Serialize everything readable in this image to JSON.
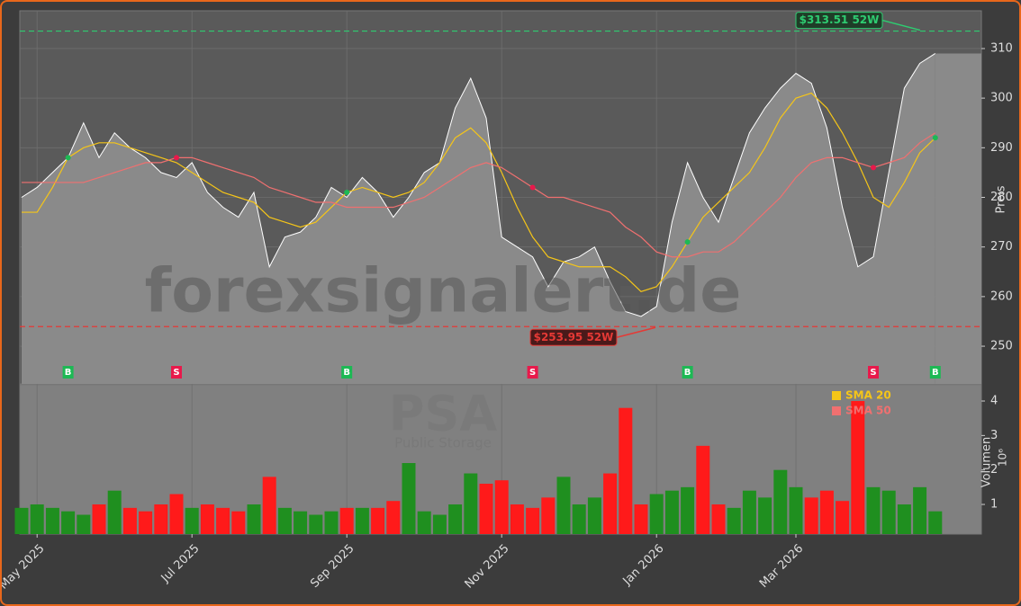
{
  "chart_data": {
    "type": "line",
    "categories": [
      null,
      "May 2025",
      null,
      null,
      null,
      null,
      null,
      null,
      null,
      null,
      null,
      "Jul 2025",
      null,
      null,
      null,
      null,
      null,
      null,
      null,
      null,
      null,
      "Sep 2025",
      null,
      null,
      null,
      null,
      null,
      null,
      null,
      null,
      null,
      "Nov 2025",
      null,
      null,
      null,
      null,
      null,
      null,
      null,
      null,
      null,
      "Jan 2026",
      null,
      null,
      null,
      null,
      null,
      null,
      null,
      null,
      "Mar 2026",
      null,
      null,
      null,
      null,
      null,
      null,
      null,
      null,
      null
    ],
    "series": [
      {
        "name": "PSA",
        "color": "#ffffff",
        "values": [
          280,
          282,
          285,
          288,
          295,
          288,
          293,
          290,
          288,
          285,
          284,
          287,
          281,
          278,
          276,
          281,
          266,
          272,
          273,
          276,
          282,
          280,
          284,
          281,
          276,
          280,
          285,
          287,
          298,
          304,
          296,
          272,
          270,
          268,
          262,
          267,
          268,
          270,
          263,
          257,
          256,
          258,
          275,
          287,
          280,
          275,
          284,
          293,
          298,
          302,
          305,
          303,
          294,
          278,
          266,
          268,
          285,
          302,
          307,
          309
        ]
      },
      {
        "name": "SMA 20",
        "color": "#f5c518",
        "values": [
          277,
          277,
          282,
          288,
          290,
          291,
          291,
          290,
          289,
          288,
          287,
          285,
          283,
          281,
          280,
          279,
          276,
          275,
          274,
          275,
          278,
          281,
          282,
          281,
          280,
          281,
          283,
          287,
          292,
          294,
          291,
          285,
          278,
          272,
          268,
          267,
          266,
          266,
          266,
          264,
          261,
          262,
          266,
          271,
          276,
          279,
          282,
          285,
          290,
          296,
          300,
          301,
          298,
          293,
          287,
          280,
          278,
          283,
          289,
          292
        ]
      },
      {
        "name": "SMA 50",
        "color": "#f07070",
        "values": [
          283,
          283,
          283,
          283,
          283,
          284,
          285,
          286,
          287,
          287,
          288,
          288,
          287,
          286,
          285,
          284,
          282,
          281,
          280,
          279,
          279,
          278,
          278,
          278,
          278,
          279,
          280,
          282,
          284,
          286,
          287,
          286,
          284,
          282,
          280,
          280,
          279,
          278,
          277,
          274,
          272,
          269,
          268,
          268,
          269,
          269,
          271,
          274,
          277,
          280,
          284,
          287,
          288,
          288,
          287,
          286,
          287,
          288,
          291,
          293
        ]
      }
    ],
    "ylim": [
      242.4,
      317.6
    ],
    "yticks": [
      250,
      260,
      270,
      280,
      290,
      300,
      310
    ],
    "ylabel": "Preis",
    "high": {
      "value": 313.51,
      "label": "$313.51 52W",
      "color": "#2ecc71"
    },
    "low": {
      "value": 253.95,
      "label": "$253.95 52W",
      "color": "#e53935"
    },
    "signals": [
      {
        "x": 3,
        "label": "B"
      },
      {
        "x": 10,
        "label": "S"
      },
      {
        "x": 21,
        "label": "B"
      },
      {
        "x": 33,
        "label": "S"
      },
      {
        "x": 43,
        "label": "B"
      },
      {
        "x": 55,
        "label": "S"
      },
      {
        "x": 59,
        "label": "B"
      }
    ],
    "buy_color": "#1db954",
    "sell_color": "#e8194b",
    "watermark": "forexsignalert.de",
    "ticker": "PSA",
    "company": "Public Storage",
    "volume": {
      "values": [
        0.9,
        1.0,
        0.9,
        0.8,
        0.7,
        1.0,
        1.4,
        0.9,
        0.8,
        1.0,
        1.3,
        0.9,
        1.0,
        0.9,
        0.8,
        1.0,
        1.8,
        0.9,
        0.8,
        0.7,
        0.8,
        0.9,
        0.9,
        0.9,
        1.1,
        2.2,
        0.8,
        0.7,
        1.0,
        1.9,
        1.6,
        1.7,
        1.0,
        0.9,
        1.2,
        1.8,
        1.0,
        1.2,
        1.9,
        3.8,
        1.0,
        1.3,
        1.4,
        1.5,
        2.7,
        1.0,
        0.9,
        1.4,
        1.2,
        2.0,
        1.5,
        1.2,
        1.4,
        1.1,
        4.0,
        1.5,
        1.4,
        1.0,
        1.5,
        0.8
      ],
      "ylim": [
        0.14,
        4.47
      ],
      "yticks": [
        1,
        2,
        3,
        4
      ],
      "ylabel": "Volumen",
      "unit": "10⁶",
      "up_color": "#1f8f1f",
      "down_color": "#ff1a1a"
    }
  }
}
